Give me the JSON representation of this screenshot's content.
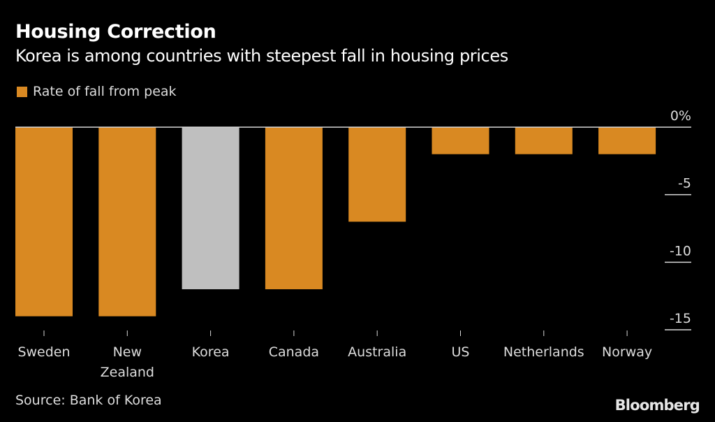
{
  "header": {
    "title": "Housing Correction",
    "subtitle": "Korea is among countries with steepest fall in housing prices"
  },
  "legend": {
    "label": "Rate of fall from peak"
  },
  "footer": {
    "source": "Source: Bank of Korea",
    "brand": "Bloomberg"
  },
  "colors": {
    "primary": "#d98922",
    "highlight": "#bfbfbf",
    "axis": "#d9d9d9",
    "background": "#000000"
  },
  "chart_data": {
    "type": "bar",
    "title": "Housing Correction",
    "subtitle": "Korea is among countries with steepest fall in housing prices",
    "xlabel": "",
    "ylabel": "",
    "legend": [
      "Rate of fall from peak"
    ],
    "legend_position": "top-left",
    "categories": [
      "Sweden",
      "New Zealand",
      "Korea",
      "Canada",
      "Australia",
      "US",
      "Netherlands",
      "Norway"
    ],
    "category_lines": [
      [
        "Sweden"
      ],
      [
        "New",
        "Zealand"
      ],
      [
        "Korea"
      ],
      [
        "Canada"
      ],
      [
        "Australia"
      ],
      [
        "US"
      ],
      [
        "Netherlands"
      ],
      [
        "Norway"
      ]
    ],
    "series": [
      {
        "name": "Rate of fall from peak",
        "values": [
          -14,
          -14,
          -12,
          -12,
          -7,
          -2,
          -2,
          -2
        ]
      }
    ],
    "highlight_category": "Korea",
    "ylim": [
      -15,
      0
    ],
    "yticks": [
      0,
      -5,
      -10,
      -15
    ],
    "ytick_labels": [
      "0%",
      "-5",
      "-10",
      "-15"
    ],
    "y_axis_side": "right",
    "grid": false
  }
}
